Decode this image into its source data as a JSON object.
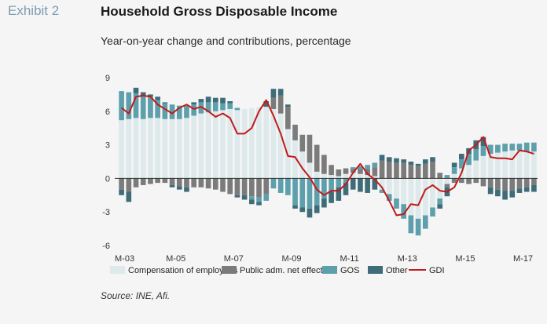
{
  "header": {
    "exhibit": "Exhibit 2",
    "title": "Household Gross Disposable Income",
    "subtitle": "Year-on-year change and contributions, percentage"
  },
  "source": "Source: INE, Afi.",
  "colors": {
    "compensation": "#dde9ea",
    "public": "#7b7b7b",
    "gos": "#5e9fac",
    "other": "#3e6c78",
    "gdi": "#c21a1a",
    "background": "#f5f5f6",
    "zero_line": "#333333"
  },
  "chart_data": {
    "type": "bar",
    "stacked": true,
    "title": "Household Gross Disposable Income",
    "subtitle": "Year-on-year change and contributions, percentage",
    "ylim": [
      -6,
      9
    ],
    "yticks": [
      -6,
      -3,
      0,
      3,
      6,
      9
    ],
    "xtick_labels": [
      "M-03",
      "M-05",
      "M-07",
      "M-09",
      "M-11",
      "M-13",
      "M-15",
      "M-17"
    ],
    "x": [
      "2003Q1",
      "2003Q2",
      "2003Q3",
      "2003Q4",
      "2004Q1",
      "2004Q2",
      "2004Q3",
      "2004Q4",
      "2005Q1",
      "2005Q2",
      "2005Q3",
      "2005Q4",
      "2006Q1",
      "2006Q2",
      "2006Q3",
      "2006Q4",
      "2007Q1",
      "2007Q2",
      "2007Q3",
      "2007Q4",
      "2008Q1",
      "2008Q2",
      "2008Q3",
      "2008Q4",
      "2009Q1",
      "2009Q2",
      "2009Q3",
      "2009Q4",
      "2010Q1",
      "2010Q2",
      "2010Q3",
      "2010Q4",
      "2011Q1",
      "2011Q2",
      "2011Q3",
      "2011Q4",
      "2012Q1",
      "2012Q2",
      "2012Q3",
      "2012Q4",
      "2013Q1",
      "2013Q2",
      "2013Q3",
      "2013Q4",
      "2014Q1",
      "2014Q2",
      "2014Q3",
      "2014Q4",
      "2015Q1",
      "2015Q2",
      "2015Q3",
      "2015Q4",
      "2016Q1",
      "2016Q2",
      "2016Q3",
      "2016Q4",
      "2017Q1",
      "2017Q2"
    ],
    "series": [
      {
        "name": "Compensation of employees",
        "color_key": "compensation",
        "values": [
          5.2,
          5.3,
          5.4,
          5.3,
          5.4,
          5.4,
          5.3,
          5.3,
          5.3,
          5.4,
          5.6,
          5.8,
          5.9,
          6.0,
          6.1,
          6.2,
          6.1,
          6.2,
          6.3,
          6.4,
          6.4,
          6.2,
          5.8,
          4.4,
          3.4,
          2.4,
          1.4,
          0.6,
          0.4,
          0.3,
          0.2,
          0.4,
          0.5,
          0.4,
          0.3,
          0.2,
          -1.0,
          -1.4,
          -1.8,
          -2.3,
          -3.3,
          -3.6,
          -3.3,
          -2.6,
          -1.8,
          -0.5,
          0.4,
          0.9,
          1.2,
          1.6,
          2.0,
          2.2,
          2.3,
          2.4,
          2.5,
          2.5,
          2.4,
          2.4
        ]
      },
      {
        "name": "Public adm. net effect",
        "color_key": "public",
        "values": [
          -1.0,
          -1.2,
          -0.8,
          -0.6,
          -0.5,
          -0.4,
          -0.4,
          -0.6,
          -0.7,
          -0.8,
          -0.8,
          -0.8,
          -0.9,
          -1.0,
          -1.2,
          -1.4,
          -1.5,
          -1.5,
          -1.6,
          -1.7,
          -1.4,
          1.0,
          1.6,
          2.0,
          1.4,
          1.5,
          2.5,
          2.4,
          1.7,
          0.9,
          0.6,
          0.5,
          0.3,
          0.4,
          0.5,
          0.8,
          1.6,
          1.5,
          1.4,
          1.4,
          1.2,
          1.1,
          1.3,
          1.5,
          0.5,
          -0.3,
          -0.4,
          -0.4,
          -0.5,
          -0.4,
          -0.7,
          -0.8,
          -1.0,
          -1.1,
          -1.1,
          -0.9,
          -0.8,
          -0.6
        ]
      },
      {
        "name": "GOS",
        "color_key": "gos",
        "values": [
          2.6,
          2.4,
          2.2,
          2.1,
          1.9,
          1.6,
          1.4,
          1.3,
          1.2,
          1.1,
          1.0,
          1.0,
          0.9,
          0.8,
          0.6,
          0.5,
          0.2,
          0.0,
          -0.3,
          -0.4,
          -0.6,
          -0.9,
          -1.3,
          -1.5,
          -2.4,
          -2.6,
          -2.7,
          -2.4,
          -1.8,
          -1.2,
          -0.8,
          -0.4,
          0.2,
          0.3,
          0.4,
          0.4,
          -0.3,
          -0.6,
          -0.9,
          -1.3,
          -1.6,
          -1.5,
          -1.2,
          -0.8,
          -0.5,
          0.3,
          0.6,
          0.8,
          1.0,
          1.0,
          0.9,
          0.8,
          0.7,
          0.7,
          0.6,
          0.6,
          0.8,
          0.8
        ]
      },
      {
        "name": "Other",
        "color_key": "other",
        "values": [
          -0.5,
          -0.9,
          0.5,
          0.3,
          0.2,
          0.3,
          0.1,
          -0.2,
          -0.3,
          -0.4,
          0.2,
          0.3,
          0.5,
          0.4,
          0.5,
          0.2,
          -0.2,
          -0.4,
          -0.4,
          -0.3,
          0.5,
          0.8,
          0.6,
          0.2,
          -0.3,
          -0.4,
          -0.8,
          -0.7,
          -0.8,
          -1.0,
          -1.2,
          -1.1,
          -1.0,
          -1.2,
          -1.3,
          -1.0,
          0.5,
          0.4,
          0.4,
          0.3,
          0.3,
          0.2,
          0.4,
          0.4,
          -0.4,
          -0.8,
          0.4,
          0.5,
          0.5,
          0.8,
          0.8,
          -0.6,
          -0.6,
          -0.8,
          -0.6,
          -0.4,
          -0.4,
          -0.6
        ]
      },
      {
        "name": "GDI",
        "type": "line",
        "color_key": "gdi",
        "values": [
          6.3,
          5.8,
          7.3,
          7.4,
          7.3,
          6.6,
          6.2,
          5.8,
          6.3,
          6.6,
          6.2,
          6.4,
          6.0,
          5.5,
          5.8,
          5.4,
          4.0,
          4.0,
          4.5,
          6.0,
          7.0,
          5.6,
          4.0,
          2.0,
          1.9,
          0.9,
          0.1,
          -1.0,
          -1.5,
          -1.1,
          -1.1,
          -0.5,
          0.5,
          1.3,
          0.4,
          -0.1,
          -0.8,
          -2.0,
          -3.3,
          -3.2,
          -2.3,
          -2.4,
          -1.0,
          -0.6,
          -1.1,
          -1.2,
          -0.8,
          0.5,
          2.5,
          3.0,
          3.7,
          1.9,
          1.8,
          1.8,
          1.7,
          2.5,
          2.4,
          2.2
        ]
      }
    ],
    "legend_position": "bottom",
    "grid": false
  }
}
